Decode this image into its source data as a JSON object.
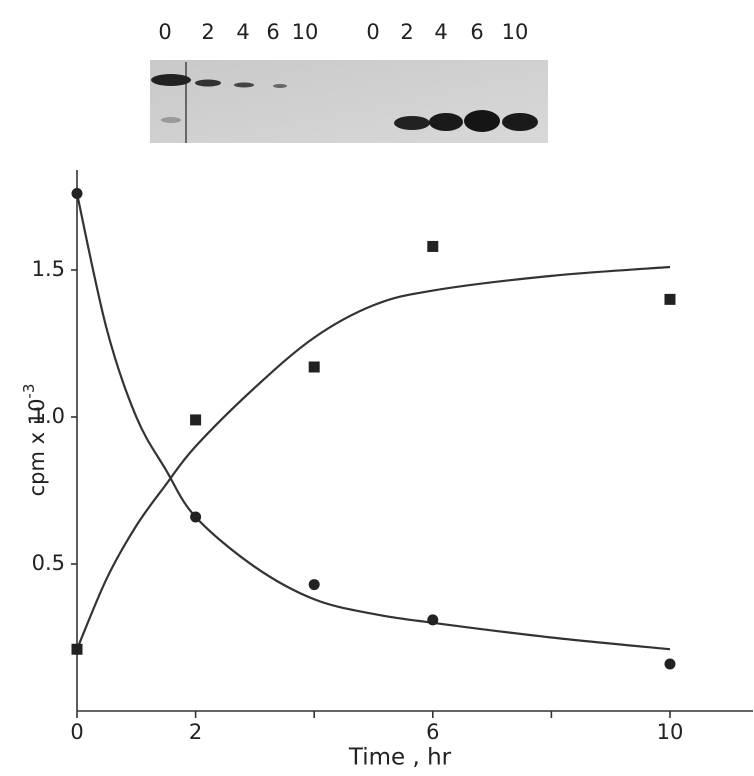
{
  "chart_data": {
    "type": "scatter",
    "x_label": "Time , hr",
    "y_label": "cpm x 10",
    "y_label_exponent": "-3",
    "gel_lane_labels": [
      "0",
      "2",
      "4",
      "6",
      "10",
      "0",
      "2",
      "4",
      "6",
      "10"
    ],
    "xlim": [
      0,
      11.4
    ],
    "ylim": [
      0,
      1.84
    ],
    "xticks": [
      0,
      2,
      6,
      10
    ],
    "x_minor_ticks": [
      4,
      8
    ],
    "yticks": [
      0.5,
      {
        "value": 1,
        "label": "1.0"
      },
      1.5
    ],
    "series": [
      {
        "color": "#222",
        "marker": "circle",
        "x": [
          0,
          2,
          4,
          6,
          10
        ],
        "values": [
          1.76,
          0.66,
          0.43,
          0.31,
          0.16
        ]
      },
      {
        "color": "#222",
        "marker": "square",
        "x": [
          0,
          2,
          4,
          6,
          10
        ],
        "values": [
          0.21,
          0.99,
          1.17,
          1.58,
          1.4
        ]
      }
    ],
    "curves": [
      {
        "color": "#333",
        "x": [
          0,
          0.5,
          1,
          1.5,
          2,
          3,
          4,
          5,
          6,
          8,
          10
        ],
        "values": [
          1.76,
          1.3,
          1.0,
          0.82,
          0.66,
          0.49,
          0.38,
          0.33,
          0.3,
          0.25,
          0.21
        ]
      },
      {
        "color": "#333",
        "x": [
          0,
          0.5,
          1,
          1.5,
          2,
          3,
          4,
          5,
          6,
          8,
          10
        ],
        "values": [
          0.21,
          0.45,
          0.63,
          0.77,
          0.9,
          1.1,
          1.27,
          1.38,
          1.43,
          1.48,
          1.51
        ]
      }
    ]
  }
}
